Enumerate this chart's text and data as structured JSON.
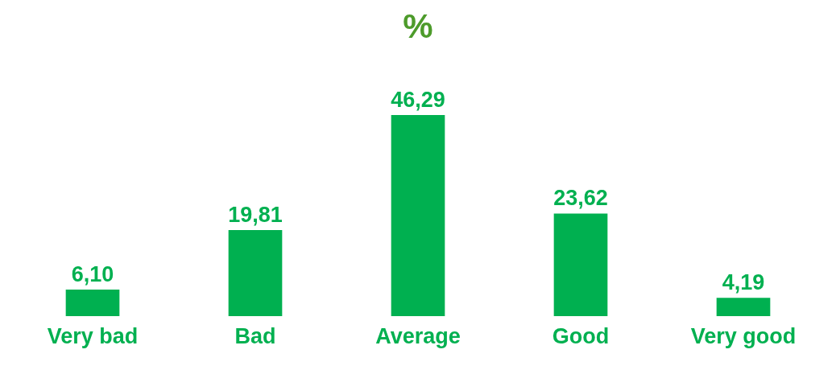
{
  "chart_data": {
    "type": "bar",
    "title": "%",
    "categories": [
      "Very bad",
      "Bad",
      "Average",
      "Good",
      "Very good"
    ],
    "values": [
      6.1,
      19.81,
      46.29,
      23.62,
      4.19
    ],
    "value_labels": [
      "6,10",
      "19,81",
      "46,29",
      "23,62",
      "4,19"
    ],
    "color": "#00b050",
    "grid": false
  }
}
